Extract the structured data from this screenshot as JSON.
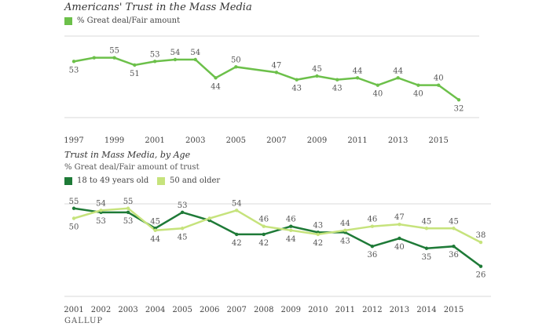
{
  "chart_data": [
    {
      "type": "line",
      "title": "Americans' Trust in the Mass Media",
      "legend": "% Great deal/Fair amount",
      "x_ticks": [
        "1997",
        "1999",
        "2001",
        "2003",
        "2005",
        "2007",
        "2009",
        "2011",
        "2013",
        "2015"
      ],
      "series": [
        {
          "name": "% Great deal/Fair amount",
          "color": "#6cc04a",
          "points": [
            {
              "x": 1997,
              "y": 53,
              "label": "53"
            },
            {
              "x": 1998,
              "y": 55
            },
            {
              "x": 1999,
              "y": 55,
              "label": "55"
            },
            {
              "x": 2000,
              "y": 51,
              "label": "51"
            },
            {
              "x": 2001,
              "y": 53,
              "label": "53"
            },
            {
              "x": 2002,
              "y": 54,
              "label": "54"
            },
            {
              "x": 2003,
              "y": 54,
              "label": "54"
            },
            {
              "x": 2004,
              "y": 44,
              "label": "44"
            },
            {
              "x": 2005,
              "y": 50,
              "label": "50"
            },
            {
              "x": 2007,
              "y": 47,
              "label": "47"
            },
            {
              "x": 2008,
              "y": 43,
              "label": "43"
            },
            {
              "x": 2009,
              "y": 45,
              "label": "45"
            },
            {
              "x": 2010,
              "y": 43,
              "label": "43"
            },
            {
              "x": 2011,
              "y": 44,
              "label": "44"
            },
            {
              "x": 2012,
              "y": 40,
              "label": "40"
            },
            {
              "x": 2013,
              "y": 44,
              "label": "44"
            },
            {
              "x": 2014,
              "y": 40,
              "label": "40"
            },
            {
              "x": 2015,
              "y": 40,
              "label": "40"
            },
            {
              "x": 2016,
              "y": 32,
              "label": "32"
            }
          ]
        }
      ]
    },
    {
      "type": "line",
      "title": "Trust in Mass Media, by Age",
      "subtitle": "% Great deal/Fair amount of trust",
      "x_ticks": [
        "2001",
        "2002",
        "2003",
        "2004",
        "2005",
        "2006",
        "2007",
        "2008",
        "2009",
        "2010",
        "2011",
        "2012",
        "2013",
        "2014",
        "2015"
      ],
      "series": [
        {
          "name": "18 to 49 years old",
          "color": "#1e7a37",
          "points": [
            {
              "x": 2001,
              "y": 55,
              "label": "55"
            },
            {
              "x": 2002,
              "y": 53,
              "label": "53"
            },
            {
              "x": 2003,
              "y": 53,
              "label": "53"
            },
            {
              "x": 2004,
              "y": 45,
              "label": "45"
            },
            {
              "x": 2005,
              "y": 53,
              "label": "53"
            },
            {
              "x": 2006,
              "y": 49
            },
            {
              "x": 2007,
              "y": 42,
              "label": "42"
            },
            {
              "x": 2008,
              "y": 42,
              "label": "42"
            },
            {
              "x": 2009,
              "y": 46,
              "label": "46"
            },
            {
              "x": 2010,
              "y": 43,
              "label": "43"
            },
            {
              "x": 2011,
              "y": 43,
              "label": "43"
            },
            {
              "x": 2012,
              "y": 36,
              "label": "36"
            },
            {
              "x": 2013,
              "y": 40,
              "label": "40"
            },
            {
              "x": 2014,
              "y": 35,
              "label": "35"
            },
            {
              "x": 2015,
              "y": 36,
              "label": "36"
            },
            {
              "x": 2016,
              "y": 26,
              "label": "26"
            }
          ]
        },
        {
          "name": "50 and older",
          "color": "#c6e37c",
          "points": [
            {
              "x": 2001,
              "y": 50,
              "label": "50"
            },
            {
              "x": 2002,
              "y": 54,
              "label": "54"
            },
            {
              "x": 2003,
              "y": 55,
              "label": "55"
            },
            {
              "x": 2004,
              "y": 44,
              "label": "44"
            },
            {
              "x": 2005,
              "y": 45,
              "label": "45"
            },
            {
              "x": 2006,
              "y": 50
            },
            {
              "x": 2007,
              "y": 54,
              "label": "54"
            },
            {
              "x": 2008,
              "y": 46,
              "label": "46"
            },
            {
              "x": 2009,
              "y": 44,
              "label": "44"
            },
            {
              "x": 2010,
              "y": 42,
              "label": "42"
            },
            {
              "x": 2011,
              "y": 44,
              "label": "44"
            },
            {
              "x": 2012,
              "y": 46,
              "label": "46"
            },
            {
              "x": 2013,
              "y": 47,
              "label": "47"
            },
            {
              "x": 2014,
              "y": 45,
              "label": "45"
            },
            {
              "x": 2015,
              "y": 45,
              "label": "45"
            },
            {
              "x": 2016,
              "y": 38,
              "label": "38"
            }
          ]
        }
      ]
    }
  ],
  "footer": {
    "brand": "GALLUP"
  }
}
